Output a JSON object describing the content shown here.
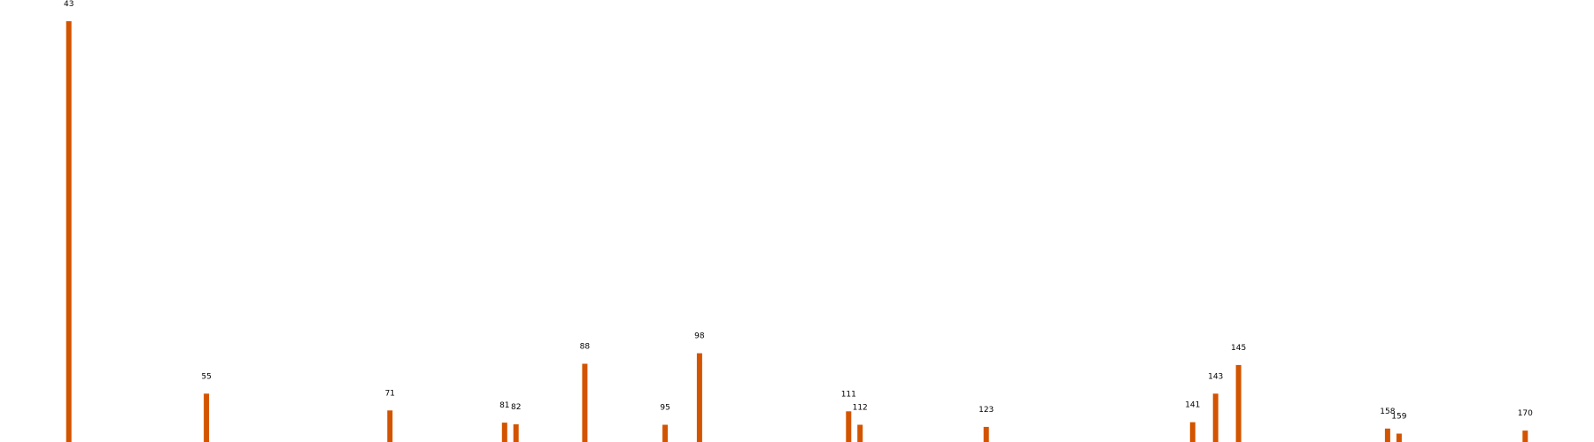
{
  "chart_data": {
    "type": "bar",
    "title": "",
    "xlabel": "",
    "ylabel": "",
    "bar_color": "#d35400",
    "background": "#ffffff",
    "grid": false,
    "axes_visible": false,
    "xlim": [
      37,
      176
    ],
    "ylim": [
      0,
      100
    ],
    "categories": [
      "43",
      "55",
      "71",
      "81",
      "82",
      "88",
      "95",
      "98",
      "111",
      "112",
      "123",
      "141",
      "143",
      "145",
      "158",
      "159",
      "170"
    ],
    "x": [
      43,
      55,
      71,
      81,
      82,
      88,
      95,
      98,
      111,
      112,
      123,
      141,
      143,
      145,
      158,
      159,
      170
    ],
    "values": [
      100,
      11.5,
      7.5,
      4.6,
      4.2,
      18.6,
      4.1,
      21.1,
      7.3,
      4.1,
      3.6,
      4.7,
      11.5,
      18.3,
      3.2,
      2.0,
      2.7
    ]
  }
}
